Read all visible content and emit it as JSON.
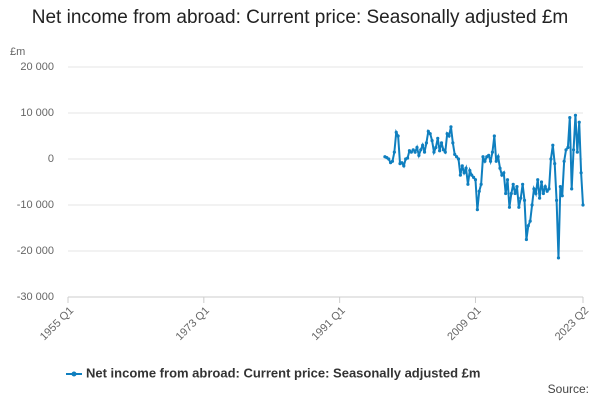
{
  "chart_data": {
    "type": "line",
    "title": "Net income from abroad: Current price: Seasonally adjusted £m",
    "y_unit": "£m",
    "source": "Source:",
    "x": [
      1997,
      1997.25,
      1997.5,
      1997.75,
      1998,
      1998.25,
      1998.5,
      1998.75,
      1999,
      1999.25,
      1999.5,
      1999.75,
      2000,
      2000.25,
      2000.5,
      2000.75,
      2001,
      2001.25,
      2001.5,
      2001.75,
      2002,
      2002.25,
      2002.5,
      2002.75,
      2003,
      2003.25,
      2003.5,
      2003.75,
      2004,
      2004.25,
      2004.5,
      2004.75,
      2005,
      2005.25,
      2005.5,
      2005.75,
      2006,
      2006.25,
      2006.5,
      2006.75,
      2007,
      2007.25,
      2007.5,
      2007.75,
      2008,
      2008.25,
      2008.5,
      2008.75,
      2009,
      2009.25,
      2009.5,
      2009.75,
      2010,
      2010.25,
      2010.5,
      2010.75,
      2011,
      2011.25,
      2011.5,
      2011.75,
      2012,
      2012.25,
      2012.5,
      2012.75,
      2013,
      2013.25,
      2013.5,
      2013.75,
      2014,
      2014.25,
      2014.5,
      2014.75,
      2015,
      2015.25,
      2015.5,
      2015.75,
      2016,
      2016.25,
      2016.5,
      2016.75,
      2017,
      2017.25,
      2017.5,
      2017.75,
      2018,
      2018.25,
      2018.5,
      2018.75,
      2019,
      2019.25,
      2019.5,
      2019.75,
      2020,
      2020.25,
      2020.5,
      2020.75,
      2021,
      2021.25,
      2021.5,
      2021.75,
      2022,
      2022.25,
      2022.5,
      2022.75,
      2023,
      2023.25
    ],
    "series": [
      {
        "name": "Net income from abroad: Current price: Seasonally adjusted £m",
        "color": "#0f7fbf",
        "values": [
          500,
          300,
          0,
          -800,
          -500,
          1500,
          5800,
          5000,
          -1000,
          -800,
          -1500,
          0,
          200,
          1800,
          1500,
          2000,
          1500,
          2500,
          800,
          2000,
          3000,
          1500,
          3500,
          6000,
          5500,
          4000,
          1500,
          2500,
          4500,
          1800,
          3500,
          2000,
          1500,
          5500,
          5000,
          7000,
          3500,
          1000,
          500,
          0,
          -3500,
          -1500,
          -3000,
          -2000,
          -5500,
          -2500,
          -3500,
          -4000,
          -4500,
          -11000,
          -7000,
          -5500,
          500,
          -500,
          500,
          800,
          -500,
          1500,
          5000,
          -500,
          500,
          -2000,
          -3500,
          -3000,
          -7500,
          -4500,
          -10500,
          -7500,
          -5500,
          -7500,
          -6000,
          -10500,
          -8500,
          -5500,
          -9000,
          -17500,
          -14500,
          -13500,
          -10000,
          -6500,
          -7500,
          -4500,
          -8500,
          -5000,
          -7500,
          -6000,
          -7000,
          -6500,
          0,
          3000,
          -1000,
          -9000,
          -21500,
          -6000,
          -8000,
          -500,
          2000,
          2500,
          9000,
          -6500,
          2000,
          9500,
          1500,
          8000,
          -3000,
          -10000
        ]
      }
    ],
    "xlim": [
      1955,
      2023.25
    ],
    "xticks": [
      {
        "value": 1955,
        "label": "1955 Q1"
      },
      {
        "value": 1973,
        "label": "1973 Q1"
      },
      {
        "value": 1991,
        "label": "1991 Q1"
      },
      {
        "value": 2009,
        "label": "2009 Q1"
      },
      {
        "value": 2023.25,
        "label": "2023 Q2"
      }
    ],
    "ylim": [
      -30000,
      20000
    ],
    "yticks": [
      {
        "value": -30000,
        "label": "-30 000"
      },
      {
        "value": -20000,
        "label": "-20 000"
      },
      {
        "value": -10000,
        "label": "-10 000"
      },
      0,
      {
        "value": 10000,
        "label": "10 000"
      },
      {
        "value": 20000,
        "label": "20 000"
      }
    ],
    "grid": true
  }
}
